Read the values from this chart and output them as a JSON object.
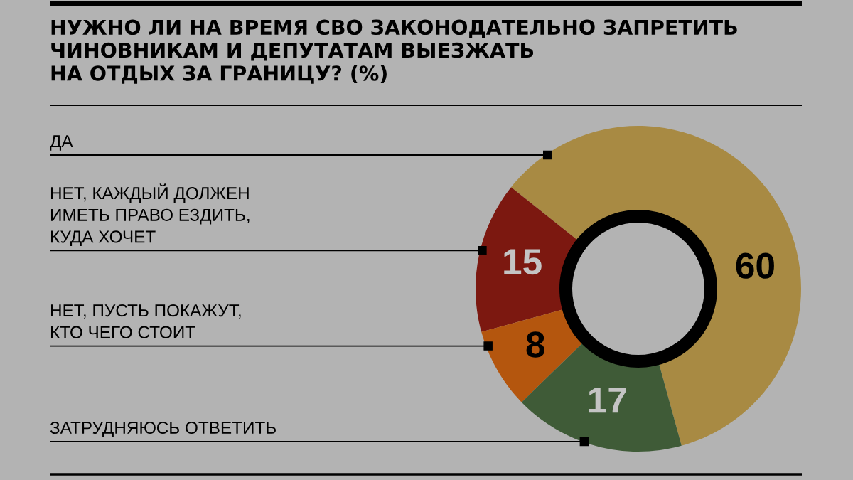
{
  "chart_data": {
    "type": "donut",
    "title": "НУЖНО ЛИ НА ВРЕМЯ СВО ЗАКОНОДАТЕЛЬНО ЗАПРЕТИТЬ\nЧИНОВНИКАМ И ДЕПУТАТАМ ВЫЕЗЖАТЬ\nНА ОТДЫХ ЗА ГРАНИЦУ? (%)",
    "categories": [
      "ДА",
      "НЕТ, КАЖДЫЙ ДОЛЖЕН\nИМЕТЬ ПРАВО ЕЗДИТЬ,\nКУДА ХОЧЕТ",
      "НЕТ, ПУСТЬ ПОКАЖУТ,\nКТО ЧЕГО СТОИТ",
      "ЗАТРУДНЯЮСЬ ОТВЕТИТЬ"
    ],
    "values": [
      60,
      15,
      8,
      17
    ],
    "colors": [
      "#a88a43",
      "#7c1810",
      "#b4560e",
      "#3f5b37"
    ],
    "data_labels": true
  }
}
